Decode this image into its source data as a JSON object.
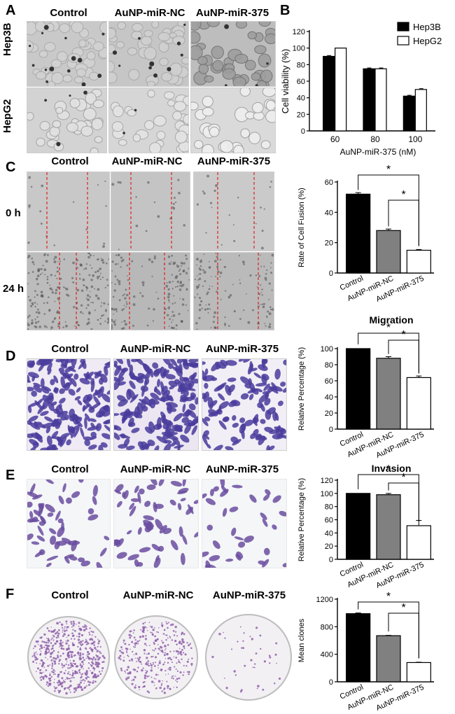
{
  "panels": {
    "A": {
      "letter": "A",
      "columns": [
        "Control",
        "AuNP-miR-NC",
        "AuNP-miR-375"
      ],
      "rows": [
        "Hep3B",
        "HepG2"
      ]
    },
    "B": {
      "letter": "B"
    },
    "C": {
      "letter": "C",
      "columns": [
        "Control",
        "AuNP-miR-NC",
        "AuNP-miR-375"
      ],
      "rows": [
        "0 h",
        "24 h"
      ]
    },
    "D": {
      "letter": "D",
      "columns": [
        "Control",
        "AuNP-miR-NC",
        "AuNP-miR-375"
      ]
    },
    "E": {
      "letter": "E",
      "columns": [
        "Control",
        "AuNP-miR-NC",
        "AuNP-miR-375"
      ]
    },
    "F": {
      "letter": "F",
      "columns": [
        "Control",
        "AuNP-miR-NC",
        "AuNP-miR-375"
      ]
    }
  },
  "colors": {
    "black_bar": "#000000",
    "gray_bar": "#808080",
    "white_bar": "#ffffff",
    "scratch_line": "#e02020",
    "crystal_violet": "#4a3c9c",
    "colony_purple": "#8a5aa8"
  },
  "chart_data": [
    {
      "id": "B",
      "type": "bar",
      "categories": [
        "60",
        "80",
        "100"
      ],
      "xlabel": "AuNP-miR-375 (nM)",
      "ylabel": "Cell viability (%)",
      "ylim": [
        0,
        120
      ],
      "yticks": [
        0,
        20,
        40,
        60,
        80,
        100,
        120
      ],
      "legend_position": "top-right",
      "series": [
        {
          "name": "Hep3B",
          "color": "#000000",
          "values": [
            90,
            75,
            42
          ]
        },
        {
          "name": "HepG2",
          "color": "#ffffff",
          "values": [
            100,
            75,
            50
          ]
        }
      ],
      "errors": [
        [
          1,
          1,
          1
        ],
        [
          0,
          1,
          1
        ]
      ]
    },
    {
      "id": "C",
      "type": "bar",
      "categories": [
        "Control",
        "AuNP-miR-NC",
        "AuNP-miR-375"
      ],
      "colors": [
        "#000000",
        "#808080",
        "#ffffff"
      ],
      "values": [
        52,
        28,
        15
      ],
      "errors": [
        1,
        1,
        0.5
      ],
      "ylabel": "Rate of Cell Fusion (%)",
      "ylim": [
        0,
        60
      ],
      "yticks": [
        0,
        20,
        40,
        60
      ],
      "significance": [
        {
          "from": 0,
          "to": 2,
          "label": "*"
        },
        {
          "from": 1,
          "to": 2,
          "label": "*"
        }
      ]
    },
    {
      "id": "D",
      "type": "bar",
      "title": "Migration",
      "categories": [
        "Control",
        "AuNP-miR-NC",
        "AuNP-miR-375"
      ],
      "colors": [
        "#000000",
        "#808080",
        "#ffffff"
      ],
      "values": [
        100,
        88,
        64
      ],
      "errors": [
        0,
        2,
        2
      ],
      "ylabel": "Relative Percentage (%)",
      "ylim": [
        0,
        100
      ],
      "yticks": [
        0,
        20,
        40,
        60,
        80,
        100
      ],
      "significance": [
        {
          "from": 0,
          "to": 2,
          "label": "*"
        },
        {
          "from": 1,
          "to": 2,
          "label": "*"
        }
      ]
    },
    {
      "id": "E",
      "type": "bar",
      "title": "Invasion",
      "categories": [
        "Control",
        "AuNP-miR-NC",
        "AuNP-miR-375"
      ],
      "colors": [
        "#000000",
        "#808080",
        "#ffffff"
      ],
      "values": [
        100,
        98,
        51
      ],
      "errors": [
        0,
        2,
        8
      ],
      "ylabel": "Relative Percentage (%)",
      "ylim": [
        0,
        120
      ],
      "yticks": [
        0,
        20,
        40,
        60,
        80,
        100,
        120
      ],
      "significance": [
        {
          "from": 0,
          "to": 2,
          "label": "*"
        },
        {
          "from": 1,
          "to": 2,
          "label": "*"
        }
      ]
    },
    {
      "id": "F",
      "type": "bar",
      "categories": [
        "Control",
        "AuNP-miR-NC",
        "AuNP-miR-375"
      ],
      "colors": [
        "#000000",
        "#808080",
        "#ffffff"
      ],
      "values": [
        990,
        670,
        280
      ],
      "errors": [
        10,
        5,
        5
      ],
      "ylabel": "Mean clones",
      "ylim": [
        0,
        1200
      ],
      "yticks": [
        0,
        400,
        800,
        1200
      ],
      "significance": [
        {
          "from": 0,
          "to": 2,
          "label": "*"
        },
        {
          "from": 1,
          "to": 2,
          "label": "*"
        }
      ]
    }
  ]
}
